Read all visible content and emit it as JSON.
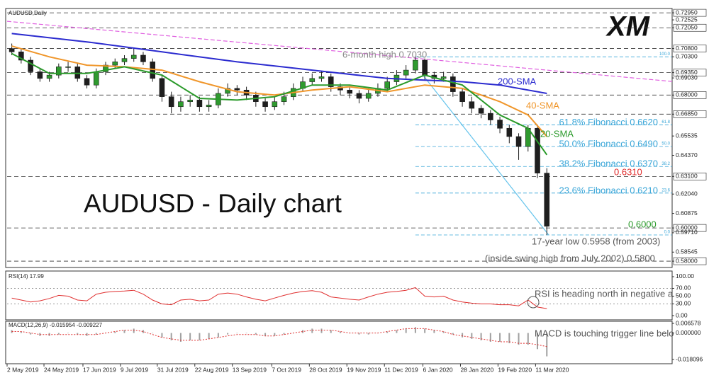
{
  "chart_data": [
    {
      "type": "candlestick",
      "title": "AUDUSD,Daily",
      "heading": "AUDUSD - Daily chart",
      "logo": "XM",
      "xlim": [
        -0.5,
        70.35
      ],
      "ylim": [
        0.5762,
        0.7321
      ],
      "up_color": "#2f9a2f",
      "down_color": "#1e1e1e",
      "yticks": [
        {
          "value": 0.7295,
          "label": "0.72950"
        },
        {
          "value": 0.72525,
          "label": "0.72525"
        },
        {
          "value": 0.7205,
          "label": "0.72050"
        },
        {
          "value": 0.708,
          "label": "0.70800"
        },
        {
          "value": 0.703,
          "label": "0.70300"
        },
        {
          "value": 0.6935,
          "label": "0.69350"
        },
        {
          "value": 0.6903,
          "label": "0.69030"
        },
        {
          "value": 0.68,
          "label": "0.68000"
        },
        {
          "value": 0.6685,
          "label": "0.66850"
        },
        {
          "value": 0.65535,
          "label": "0.65535"
        },
        {
          "value": 0.6437,
          "label": "0.64370"
        },
        {
          "value": 0.631,
          "label": "0.63100"
        },
        {
          "value": 0.6204,
          "label": "0.62040"
        },
        {
          "value": 0.60875,
          "label": "0.60875"
        },
        {
          "value": 0.6,
          "label": "0.60000"
        },
        {
          "value": 0.5971,
          "label": "0.59710"
        },
        {
          "value": 0.58545,
          "label": "0.58545"
        },
        {
          "value": 0.58,
          "label": "0.58000"
        }
      ],
      "levels": [
        0.7295,
        0.7205,
        0.708,
        0.6935,
        0.68,
        0.6685,
        0.631,
        0.6,
        0.58
      ],
      "ohlc": [
        [
          0.708,
          0.711,
          0.704,
          0.706
        ],
        [
          0.706,
          0.708,
          0.699,
          0.701
        ],
        [
          0.701,
          0.703,
          0.692,
          0.694
        ],
        [
          0.694,
          0.696,
          0.688,
          0.69
        ],
        [
          0.69,
          0.694,
          0.688,
          0.692
        ],
        [
          0.692,
          0.699,
          0.69,
          0.697
        ],
        [
          0.697,
          0.7,
          0.694,
          0.697
        ],
        [
          0.697,
          0.699,
          0.688,
          0.69
        ],
        [
          0.69,
          0.692,
          0.684,
          0.686
        ],
        [
          0.686,
          0.696,
          0.684,
          0.694
        ],
        [
          0.694,
          0.7,
          0.692,
          0.698
        ],
        [
          0.698,
          0.702,
          0.696,
          0.7
        ],
        [
          0.7,
          0.704,
          0.698,
          0.702
        ],
        [
          0.702,
          0.708,
          0.7,
          0.704
        ],
        [
          0.704,
          0.706,
          0.698,
          0.7
        ],
        [
          0.7,
          0.702,
          0.688,
          0.69
        ],
        [
          0.69,
          0.692,
          0.676,
          0.679
        ],
        [
          0.679,
          0.682,
          0.669,
          0.673
        ],
        [
          0.673,
          0.679,
          0.67,
          0.676
        ],
        [
          0.676,
          0.68,
          0.673,
          0.677
        ],
        [
          0.677,
          0.679,
          0.67,
          0.673
        ],
        [
          0.673,
          0.677,
          0.67,
          0.674
        ],
        [
          0.674,
          0.684,
          0.672,
          0.681
        ],
        [
          0.681,
          0.687,
          0.679,
          0.684
        ],
        [
          0.684,
          0.686,
          0.68,
          0.683
        ],
        [
          0.683,
          0.685,
          0.677,
          0.68
        ],
        [
          0.68,
          0.682,
          0.673,
          0.676
        ],
        [
          0.676,
          0.678,
          0.67,
          0.673
        ],
        [
          0.673,
          0.679,
          0.671,
          0.676
        ],
        [
          0.676,
          0.682,
          0.674,
          0.679
        ],
        [
          0.679,
          0.687,
          0.677,
          0.684
        ],
        [
          0.684,
          0.691,
          0.682,
          0.688
        ],
        [
          0.688,
          0.693,
          0.686,
          0.69
        ],
        [
          0.69,
          0.694,
          0.688,
          0.691
        ],
        [
          0.691,
          0.693,
          0.682,
          0.685
        ],
        [
          0.685,
          0.687,
          0.68,
          0.683
        ],
        [
          0.683,
          0.685,
          0.678,
          0.681
        ],
        [
          0.681,
          0.683,
          0.675,
          0.678
        ],
        [
          0.678,
          0.684,
          0.676,
          0.681
        ],
        [
          0.681,
          0.687,
          0.679,
          0.684
        ],
        [
          0.684,
          0.691,
          0.682,
          0.688
        ],
        [
          0.688,
          0.695,
          0.686,
          0.692
        ],
        [
          0.692,
          0.698,
          0.69,
          0.695
        ],
        [
          0.695,
          0.703,
          0.693,
          0.701
        ],
        [
          0.701,
          0.702,
          0.689,
          0.692
        ],
        [
          0.692,
          0.694,
          0.687,
          0.69
        ],
        [
          0.69,
          0.694,
          0.688,
          0.691
        ],
        [
          0.691,
          0.693,
          0.679,
          0.682
        ],
        [
          0.682,
          0.684,
          0.673,
          0.676
        ],
        [
          0.676,
          0.679,
          0.669,
          0.672
        ],
        [
          0.672,
          0.674,
          0.666,
          0.669
        ],
        [
          0.669,
          0.671,
          0.662,
          0.665
        ],
        [
          0.665,
          0.667,
          0.657,
          0.66
        ],
        [
          0.66,
          0.662,
          0.651,
          0.655
        ],
        [
          0.655,
          0.657,
          0.641,
          0.649
        ],
        [
          0.649,
          0.662,
          0.646,
          0.66
        ],
        [
          0.66,
          0.662,
          0.63,
          0.633
        ],
        [
          0.633,
          0.636,
          0.5958,
          0.601
        ]
      ],
      "series": [
        {
          "name": "200-SMA",
          "color": "#2b2bcf",
          "x": [
            0,
            8,
            16,
            24,
            32,
            40,
            44,
            48,
            52,
            57
          ],
          "values": [
            0.717,
            0.712,
            0.706,
            0.7,
            0.695,
            0.69,
            0.689,
            0.688,
            0.686,
            0.681
          ]
        },
        {
          "name": "40-SMA",
          "color": "#f0962a",
          "x": [
            0,
            4,
            8,
            12,
            16,
            20,
            24,
            28,
            32,
            36,
            40,
            44,
            48,
            52,
            55,
            57
          ],
          "values": [
            0.7095,
            0.703,
            0.698,
            0.697,
            0.695,
            0.688,
            0.682,
            0.68,
            0.683,
            0.685,
            0.682,
            0.686,
            0.684,
            0.676,
            0.668,
            0.655
          ]
        },
        {
          "name": "20-SMA",
          "color": "#2a9a2a",
          "x": [
            0,
            4,
            8,
            12,
            16,
            20,
            24,
            28,
            32,
            36,
            40,
            44,
            48,
            52,
            55,
            57
          ],
          "values": [
            0.705,
            0.693,
            0.693,
            0.697,
            0.692,
            0.678,
            0.677,
            0.679,
            0.686,
            0.686,
            0.683,
            0.692,
            0.686,
            0.668,
            0.66,
            0.644
          ]
        }
      ],
      "trendlines": [
        {
          "color": "#e060e0",
          "x": [
            -0.5,
            70.35
          ],
          "values": [
            0.7244,
            0.6882
          ]
        },
        {
          "color": "#66c4ec",
          "x": [
            43.8,
            57.2
          ],
          "values": [
            0.692,
            0.5958
          ]
        }
      ],
      "fibonacci": {
        "x_start": 43,
        "color": "#3aa6d8",
        "levels": [
          {
            "value": 0.703,
            "tag": "100.0"
          },
          {
            "value": 0.662,
            "text": "61.8% Fibonacci 0.6620",
            "tag": "61.8"
          },
          {
            "value": 0.649,
            "text": "50.0% Fibonacci 0.6490",
            "tag": "50.0"
          },
          {
            "value": 0.637,
            "text": "38.2% Fibonacci 0.6370",
            "tag": "38.2"
          },
          {
            "value": 0.621,
            "text": "23.6% Fibonacci 0.6210",
            "tag": "23.6"
          },
          {
            "value": 0.5958,
            "tag": "0.0"
          }
        ]
      },
      "annotations": [
        {
          "text": "6-month high 0.7030",
          "color": "#8a8a8a"
        },
        {
          "text": "0.6310",
          "color": "#e02a2a"
        },
        {
          "text": "0.6000",
          "color": "#2a9a2a"
        },
        {
          "text": "17-year low 0.5958 (from 2003)",
          "color": "#555555"
        },
        {
          "text": "(inside swing high from July 2002) 0.5800",
          "color": "#555555"
        }
      ]
    },
    {
      "type": "line",
      "title": "RSI(14) 17.99",
      "xlim": [
        -0.5,
        70.35
      ],
      "ylim": [
        -10.9,
        112.7
      ],
      "color": "#e03030",
      "yticks": [
        {
          "value": 100,
          "label": "100.00"
        },
        {
          "value": 70,
          "label": "70.00"
        },
        {
          "value": 50,
          "label": "50.00"
        },
        {
          "value": 30,
          "label": "30.00"
        },
        {
          "value": 0,
          "label": "0.00"
        }
      ],
      "levels": [
        70,
        30
      ],
      "values": [
        45,
        40,
        35,
        38,
        44,
        52,
        50,
        40,
        38,
        55,
        60,
        62,
        63,
        65,
        55,
        40,
        30,
        28,
        40,
        42,
        38,
        40,
        55,
        58,
        55,
        48,
        42,
        38,
        45,
        52,
        58,
        62,
        64,
        60,
        48,
        45,
        42,
        40,
        48,
        55,
        60,
        62,
        65,
        72,
        50,
        48,
        50,
        40,
        35,
        32,
        30,
        30,
        28,
        28,
        25,
        40,
        22,
        17.99
      ],
      "annotation": "RSI is heading north in negative a"
    },
    {
      "type": "macd",
      "title": "MACD(12,26,9) -0.015954 -0.009227",
      "xlim": [
        -0.5,
        70.35
      ],
      "ylim": [
        -0.018096,
        0.006578
      ],
      "yticks": [
        0.006578,
        {
          "value": 0,
          "label": "0.000000"
        },
        -0.018096
      ],
      "series": [
        {
          "color": "#a0a0a0",
          "values": [
            0.002,
            0.001,
            -0.001,
            -0.002,
            -0.002,
            -0.001,
            0,
            -0.001,
            -0.002,
            -0.001,
            0,
            0.001,
            0.002,
            0.003,
            0.002,
            0,
            -0.003,
            -0.005,
            -0.006,
            -0.005,
            -0.005,
            -0.004,
            -0.003,
            -0.001,
            0,
            0,
            -0.001,
            -0.002,
            -0.002,
            -0.001,
            0,
            0.002,
            0.003,
            0.003,
            0.002,
            0.001,
            0,
            -0.001,
            -0.001,
            0,
            0.001,
            0.002,
            0.003,
            0.004,
            0.003,
            0.002,
            0.001,
            -0.001,
            -0.003,
            -0.004,
            -0.005,
            -0.006,
            -0.006,
            -0.007,
            -0.008,
            -0.008,
            -0.011,
            -0.015954
          ]
        },
        {
          "color": "#e03030",
          "values": [
            0.001,
            0.001,
            0,
            -0.001,
            -0.001,
            -0.001,
            -0.001,
            -0.001,
            -0.001,
            -0.001,
            0,
            0.001,
            0.002,
            0.002,
            0.001,
            -0.001,
            -0.003,
            -0.004,
            -0.005,
            -0.005,
            -0.005,
            -0.004,
            -0.003,
            -0.002,
            -0.001,
            -0.001,
            -0.001,
            -0.002,
            -0.002,
            -0.001,
            0,
            0.001,
            0.002,
            0.002,
            0.002,
            0.001,
            0,
            0,
            0,
            0,
            0.001,
            0.002,
            0.003,
            0.003,
            0.003,
            0.002,
            0.001,
            -0.001,
            -0.002,
            -0.003,
            -0.004,
            -0.005,
            -0.006,
            -0.006,
            -0.007,
            -0.007,
            -0.008,
            -0.009227
          ]
        }
      ],
      "xticks": [
        {
          "value": -0.5,
          "label": "2 May 2019"
        },
        {
          "value": 3.43,
          "label": "24 May 2019"
        },
        {
          "value": 7.58,
          "label": "17 Jun 2019"
        },
        {
          "value": 11.58,
          "label": "9 Jul 2019"
        },
        {
          "value": 15.5,
          "label": "31 Jul 2019"
        },
        {
          "value": 19.5,
          "label": "22 Aug 2019"
        },
        {
          "value": 23.5,
          "label": "13 Sep 2019"
        },
        {
          "value": 27.7,
          "label": "7 Oct 2019"
        },
        {
          "value": 31.7,
          "label": "28 Oct 2019"
        },
        {
          "value": 35.7,
          "label": "19 Nov 2019"
        },
        {
          "value": 39.7,
          "label": "11 Dec 2019"
        },
        {
          "value": 43.8,
          "label": "6 Jan 2020"
        },
        {
          "value": 47.8,
          "label": "28 Jan 2020"
        },
        {
          "value": 51.8,
          "label": "19 Feb 2020"
        },
        {
          "value": 55.8,
          "label": "11 Mar 2020"
        }
      ],
      "annotation": "MACD is touching trigger line belo"
    }
  ]
}
